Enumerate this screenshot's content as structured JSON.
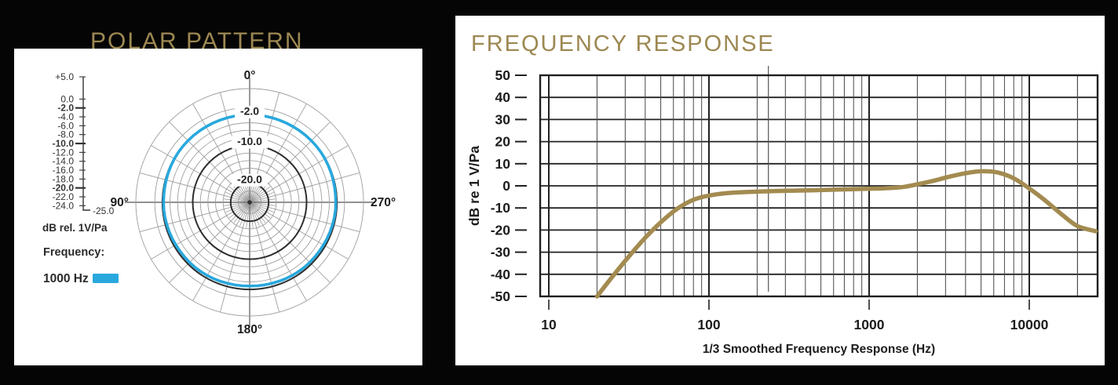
{
  "colors": {
    "background": "#050505",
    "panel": "#ffffff",
    "gold_title": "#9d8852",
    "curve_gold": "#a38b50",
    "trace_blue": "#29a8dd",
    "grid_dark": "#222222",
    "grid_light": "#9e9e9e"
  },
  "polar_panel": {
    "title": "POLAR PATTERN",
    "scale": {
      "ticks": [
        {
          "label": "+5.0",
          "value": 5,
          "bold": false
        },
        {
          "label": "0.0",
          "value": 0,
          "bold": false
        },
        {
          "label": "-2.0",
          "value": -2,
          "bold": true
        },
        {
          "label": "-4.0",
          "value": -4,
          "bold": false
        },
        {
          "label": "-6.0",
          "value": -6,
          "bold": false
        },
        {
          "label": "-8.0",
          "value": -8,
          "bold": false
        },
        {
          "label": "-10.0",
          "value": -10,
          "bold": true
        },
        {
          "label": "-12.0",
          "value": -12,
          "bold": false
        },
        {
          "label": "-14.0",
          "value": -14,
          "bold": false
        },
        {
          "label": "-16.0",
          "value": -16,
          "bold": false
        },
        {
          "label": "-18.0",
          "value": -18,
          "bold": false
        },
        {
          "label": "-20.0",
          "value": -20,
          "bold": true
        },
        {
          "label": "-22.0",
          "value": -22,
          "bold": false
        },
        {
          "label": "-24.0",
          "value": -24,
          "bold": false
        }
      ],
      "corner_label": "-25.0",
      "unit_label": "dB rel. 1V/Pa"
    },
    "legend": {
      "label": "Frequency:",
      "entry": "1000 Hz"
    },
    "chart_data": {
      "type": "polar",
      "db_range": [
        -25,
        5
      ],
      "rings_db": [
        5,
        0,
        -2,
        -4,
        -6,
        -8,
        -10,
        -12,
        -14,
        -16,
        -18,
        -20,
        -22,
        -24
      ],
      "major_rings_db": [
        -2,
        -10,
        -20
      ],
      "ring_labels": [
        {
          "text": "-2.0",
          "value": -2
        },
        {
          "text": "-10.0",
          "value": -10
        },
        {
          "text": "-20.0",
          "value": -20
        }
      ],
      "spoke_step_deg": 15,
      "inner_spoke_step_deg": 7.5,
      "angle_labels": [
        {
          "text": "0°",
          "position": "top"
        },
        {
          "text": "90°",
          "position": "left"
        },
        {
          "text": "270°",
          "position": "right"
        },
        {
          "text": "180°",
          "position": "bottom"
        }
      ],
      "series": [
        {
          "name": "1000 Hz",
          "points_deg_db": [
            [
              0,
              -1.9
            ],
            [
              45,
              -2.0
            ],
            [
              90,
              -2.3
            ],
            [
              135,
              -2.6
            ],
            [
              180,
              -2.9
            ],
            [
              225,
              -2.6
            ],
            [
              270,
              -2.3
            ],
            [
              315,
              -2.0
            ]
          ]
        }
      ]
    }
  },
  "freq_panel": {
    "title": "FREQUENCY RESPONSE",
    "chart_data": {
      "type": "line",
      "x_scale": "log",
      "xlabel": "1/3 Smoothed Frequency Response (Hz)",
      "ylabel": "dB re 1 V/Pa",
      "x_ticks": [
        10,
        100,
        1000,
        10000
      ],
      "y_ticks": [
        50,
        40,
        30,
        20,
        10,
        0,
        -10,
        -20,
        -30,
        -40,
        -50
      ],
      "xlim": [
        8.8,
        26700
      ],
      "ylim": [
        -50,
        50
      ],
      "grid": true,
      "stray_vertical_line_hz": 235,
      "series": [
        {
          "name": "response",
          "points_hz_db": [
            [
              20,
              -50
            ],
            [
              25,
              -41
            ],
            [
              32,
              -31.5
            ],
            [
              40,
              -23.5
            ],
            [
              50,
              -16.5
            ],
            [
              63,
              -10.5
            ],
            [
              80,
              -6.3
            ],
            [
              100,
              -4.4
            ],
            [
              125,
              -3.4
            ],
            [
              160,
              -2.9
            ],
            [
              200,
              -2.6
            ],
            [
              250,
              -2.4
            ],
            [
              315,
              -2.2
            ],
            [
              400,
              -2.1
            ],
            [
              500,
              -1.9
            ],
            [
              630,
              -1.7
            ],
            [
              800,
              -1.5
            ],
            [
              1000,
              -1.3
            ],
            [
              1250,
              -1.1
            ],
            [
              1600,
              -0.6
            ],
            [
              2000,
              0.7
            ],
            [
              2500,
              2.2
            ],
            [
              3150,
              4.1
            ],
            [
              4000,
              5.7
            ],
            [
              5000,
              6.6
            ],
            [
              6300,
              6.1
            ],
            [
              8000,
              3.4
            ],
            [
              10000,
              -1.2
            ],
            [
              12500,
              -6.5
            ],
            [
              16000,
              -13
            ],
            [
              20000,
              -18.2
            ],
            [
              26000,
              -20.5
            ]
          ]
        }
      ]
    }
  }
}
